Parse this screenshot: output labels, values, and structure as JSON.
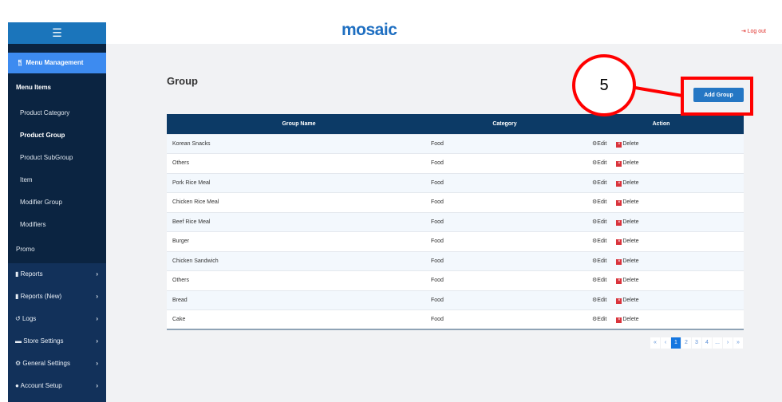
{
  "header": {
    "logo": "mosaic",
    "logout": "Log out"
  },
  "sidebar": {
    "toggle_icon": "list-icon",
    "menu_management": "Menu Management",
    "menu_items": "Menu Items",
    "sub_items": [
      "Product Category",
      "Product Group",
      "Product SubGroup",
      "Item",
      "Modifier Group",
      "Modifiers"
    ],
    "promo": "Promo",
    "sections": [
      {
        "label": "Reports",
        "icon": "file-icon"
      },
      {
        "label": "Reports (New)",
        "icon": "file-icon"
      },
      {
        "label": "Logs",
        "icon": "history-icon"
      },
      {
        "label": "Store Settings",
        "icon": "store-icon"
      },
      {
        "label": "General Settings",
        "icon": "gear-icon"
      },
      {
        "label": "Account Setup",
        "icon": "user-icon"
      }
    ]
  },
  "page": {
    "title": "Group",
    "add_button": "Add Group"
  },
  "table": {
    "headers": [
      "Group Name",
      "Category",
      "Action"
    ],
    "edit": "Edit",
    "delete": "Delete",
    "rows": [
      [
        "Korean Snacks",
        "Food"
      ],
      [
        "Others",
        "Food"
      ],
      [
        "Pork Rice Meal",
        "Food"
      ],
      [
        "Chicken Rice Meal",
        "Food"
      ],
      [
        "Beef Rice Meal",
        "Food"
      ],
      [
        "Burger",
        "Food"
      ],
      [
        "Chicken Sandwich",
        "Food"
      ],
      [
        "Others",
        "Food"
      ],
      [
        "Bread",
        "Food"
      ],
      [
        "Cake",
        "Food"
      ]
    ]
  },
  "pagination": [
    "«",
    "‹",
    "1",
    "2",
    "3",
    "4",
    "...",
    "›",
    "»"
  ],
  "pagination_active": "1",
  "annotation": {
    "step": "5"
  }
}
